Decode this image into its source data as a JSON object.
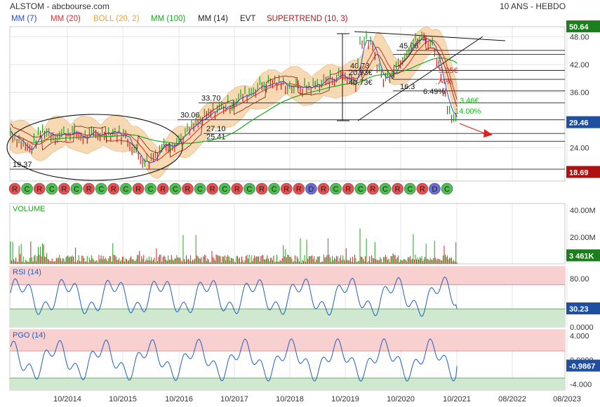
{
  "header": {
    "left": "ALSTOM - abcbourse.com",
    "right": "10 ANS - HEBDO"
  },
  "indicators": [
    {
      "label": "MM (7)",
      "color": "#1f4fd0"
    },
    {
      "label": "MM (20)",
      "color": "#e02828"
    },
    {
      "label": "BOLL (20, 2)",
      "color": "#f0a040"
    },
    {
      "label": "MM (100)",
      "color": "#1aa81a"
    },
    {
      "label": "MM (14)",
      "color": "#222222"
    },
    {
      "label": "EVT",
      "color": "#222222"
    },
    {
      "label": "SUPERTREND (10, 3)",
      "color": "#b01818"
    }
  ],
  "colors": {
    "price_up": "#1aa81a",
    "price_down": "#d42020",
    "mm7": "#1f4fd0",
    "mm20": "#e02828",
    "mm100": "#1aa81a",
    "boll_fill": "#f6d3a6",
    "boll_line": "#e8a060",
    "rsi_line": "#1f5fbf",
    "zone_high": "#f8d0d0",
    "zone_low": "#cfe8cf",
    "last_price_box": "#1f4fa0",
    "max_box": "#1b7f1b",
    "min_box": "#b01010",
    "volume_box": "#1b7f1b",
    "rsi_box": "#1f4fa0",
    "pgo_box": "#1f4fa0",
    "signal_r": "#e85050",
    "signal_c": "#4cc04c",
    "signal_d": "#6c6cd8"
  },
  "chart_data": [
    {
      "panel": "price",
      "type": "line",
      "x": [
        "2013-06",
        "2013-10",
        "2014-01",
        "2014-04",
        "2014-07",
        "2014-10",
        "2015-01",
        "2015-04",
        "2015-07",
        "2015-10",
        "2015-12",
        "2016-03",
        "2016-06",
        "2016-09",
        "2016-12",
        "2017-03",
        "2017-06",
        "2017-09",
        "2017-12",
        "2018-03",
        "2018-06",
        "2018-09",
        "2018-12",
        "2019-03",
        "2019-06",
        "2019-09",
        "2019-10",
        "2019-12",
        "2020-03",
        "2020-06",
        "2020-09",
        "2020-12",
        "2021-02",
        "2021-05",
        "2021-07"
      ],
      "series": [
        {
          "values": [
            27.5,
            23.5,
            27.8,
            26.5,
            27.6,
            26.2,
            27.0,
            27.4,
            26.5,
            22.0,
            21.0,
            24.5,
            25.3,
            27.8,
            30.2,
            32.5,
            33.6,
            35.5,
            37.4,
            38.2,
            37.5,
            36.8,
            37.4,
            38.8,
            39.8,
            38.2,
            47.5,
            47.0,
            38.5,
            42.0,
            46.5,
            47.8,
            46.0,
            33.0,
            29.46
          ]
        }
      ],
      "ylim": [
        16.8,
        50.2
      ],
      "yticks": [
        24.0,
        30.0,
        36.0,
        42.0,
        48.0
      ],
      "xticks": [
        "10/2014",
        "10/2015",
        "10/2016",
        "10/2017",
        "10/2018",
        "10/2019",
        "10/2020",
        "10/2021",
        "08/2022",
        "08/2023"
      ],
      "last_value": 29.46,
      "max_value": 50.64,
      "min_value": 18.69,
      "horizontal_levels": [
        {
          "value": 19.37,
          "label": "19.37"
        },
        {
          "value": 25.41,
          "label": "25.41"
        },
        {
          "value": 27.1,
          "label": "27.10"
        },
        {
          "value": 30.06,
          "label": "30.06"
        },
        {
          "value": 33.7,
          "label": "33.70"
        },
        {
          "value": 40.73,
          "label": "40.73"
        },
        {
          "value": 45.06,
          "label": "45.06"
        }
      ],
      "annotations": [
        "20.93€",
        "40.73€",
        "16.3",
        "5.25€",
        ".74%",
        "6.49%",
        "3.46€",
        "14.00%"
      ]
    },
    {
      "panel": "volume",
      "type": "bar",
      "title": "VOLUME",
      "ylim": [
        0,
        45
      ],
      "yticks_labels": [
        "20.00M",
        "40.00M"
      ],
      "yticks": [
        20,
        40
      ],
      "last_label": "3 461K",
      "last_value": 3.461
    },
    {
      "panel": "rsi",
      "type": "line",
      "title": "RSI (14)",
      "ylim": [
        0,
        100
      ],
      "yticks": [
        0,
        80
      ],
      "ytick_labels": [
        "0.0000",
        "80.00"
      ],
      "zones": {
        "high": [
          70,
          100
        ],
        "low": [
          0,
          30
        ]
      },
      "last_value": 30.23
    },
    {
      "panel": "pgo",
      "type": "line",
      "title": "PGO (14)",
      "ylim": [
        -5,
        5
      ],
      "yticks": [
        -4,
        0,
        4
      ],
      "ytick_labels": [
        "-4.000",
        "0.0000",
        "4.000"
      ],
      "zones": {
        "high": [
          1.5,
          5
        ],
        "low": [
          -5,
          -3
        ]
      },
      "last_value": -0.9867
    }
  ],
  "signals": [
    "R",
    "C",
    "R",
    "C",
    "R",
    "C",
    "R",
    "C",
    "R",
    "C",
    "R",
    "C",
    "R",
    "C",
    "R",
    "C",
    "R",
    "C",
    "R",
    "C",
    "R",
    "C",
    "R",
    "R",
    "D",
    "R",
    "C",
    "R",
    "C",
    "R",
    "C",
    "R",
    "C",
    "R",
    "D",
    "C"
  ]
}
